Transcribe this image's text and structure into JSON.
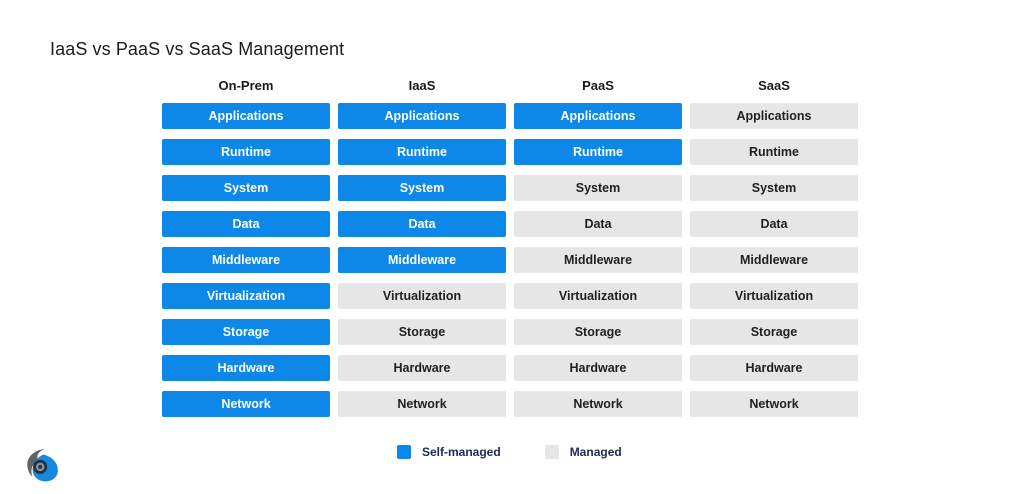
{
  "title": "IaaS vs PaaS vs SaaS Management",
  "colors": {
    "self_managed": "#0d88e8",
    "managed": "#e6e6e6",
    "text_dark": "#1f1f1f",
    "text_on_blue": "#ffffff",
    "legend_text": "#1d2b50",
    "logo_gray": "#5d6569",
    "logo_blue": "#1489dd",
    "logo_dark": "#273043"
  },
  "layers": [
    "Applications",
    "Runtime",
    "System",
    "Data",
    "Middleware",
    "Virtualization",
    "Storage",
    "Hardware",
    "Network"
  ],
  "columns": [
    {
      "label": "On-Prem",
      "self_managed": [
        "Applications",
        "Runtime",
        "System",
        "Data",
        "Middleware",
        "Virtualization",
        "Storage",
        "Hardware",
        "Network"
      ]
    },
    {
      "label": "IaaS",
      "self_managed": [
        "Applications",
        "Runtime",
        "System",
        "Data",
        "Middleware"
      ]
    },
    {
      "label": "PaaS",
      "self_managed": [
        "Applications",
        "Runtime"
      ]
    },
    {
      "label": "SaaS",
      "self_managed": []
    }
  ],
  "legend": [
    {
      "label": "Self-managed",
      "type": "self"
    },
    {
      "label": "Managed",
      "type": "managed"
    }
  ]
}
